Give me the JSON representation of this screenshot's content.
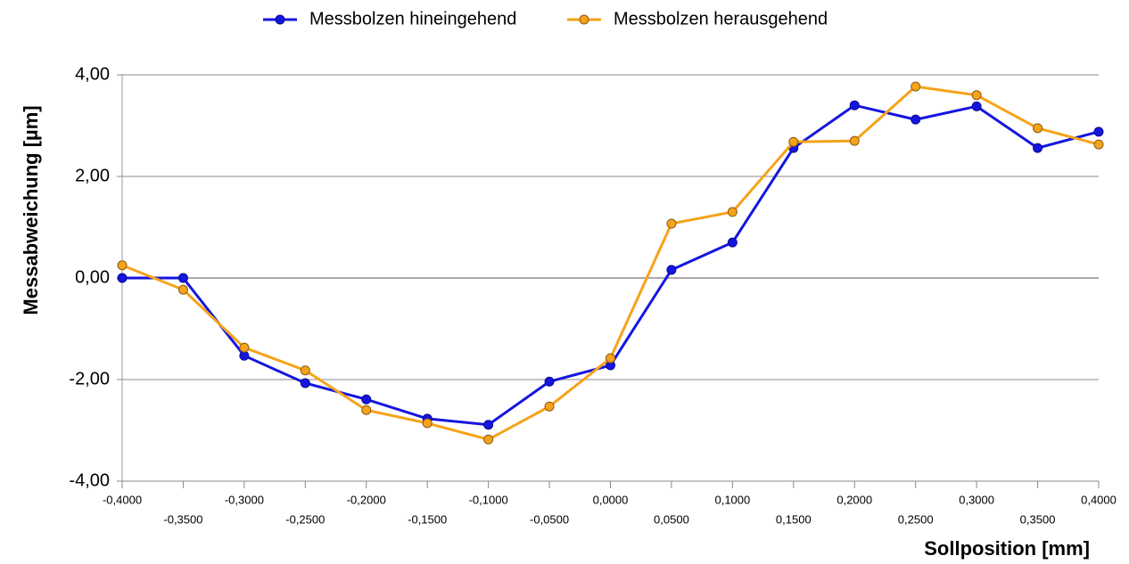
{
  "chart_data": {
    "type": "line",
    "x_label": "Sollposition [mm]",
    "y_label": "Messabweichung [µm]",
    "x": [
      -0.4,
      -0.35,
      -0.3,
      -0.25,
      -0.2,
      -0.15,
      -0.1,
      -0.05,
      0,
      0.05,
      0.1,
      0.15,
      0.2,
      0.25,
      0.3,
      0.35,
      0.4
    ],
    "series": [
      {
        "name": "Messbolzen hineingehend",
        "color": "#1515e0",
        "values": [
          0.0,
          0.0,
          -1.53,
          -2.07,
          -2.39,
          -2.77,
          -2.89,
          -2.04,
          -1.72,
          0.16,
          0.7,
          2.56,
          3.4,
          3.12,
          3.38,
          2.56,
          2.88
        ]
      },
      {
        "name": "Messbolzen herausgehend",
        "color": "#f5a31a",
        "values": [
          0.25,
          -0.23,
          -1.37,
          -1.82,
          -2.6,
          -2.86,
          -3.18,
          -2.53,
          -1.58,
          1.07,
          1.3,
          2.68,
          2.7,
          3.77,
          3.6,
          2.95,
          2.63
        ]
      }
    ],
    "xlim": [
      -0.4,
      0.4
    ],
    "xticks": [
      {
        "value": -0.4,
        "label": "-0,4000"
      },
      {
        "value": -0.35,
        "label": "-0,3500"
      },
      {
        "value": -0.3,
        "label": "-0,3000"
      },
      {
        "value": -0.25,
        "label": "-0,2500"
      },
      {
        "value": -0.2,
        "label": "-0,2000"
      },
      {
        "value": -0.15,
        "label": "-0,1500"
      },
      {
        "value": -0.1,
        "label": "-0,1000"
      },
      {
        "value": -0.05,
        "label": "-0,0500"
      },
      {
        "value": 0,
        "label": "0,0000"
      },
      {
        "value": 0.05,
        "label": "0,0500"
      },
      {
        "value": 0.1,
        "label": "0,1000"
      },
      {
        "value": 0.15,
        "label": "0,1500"
      },
      {
        "value": 0.2,
        "label": "0,2000"
      },
      {
        "value": 0.25,
        "label": "0,2500"
      },
      {
        "value": 0.3,
        "label": "0,3000"
      },
      {
        "value": 0.35,
        "label": "0,3500"
      },
      {
        "value": 0.4,
        "label": "0,4000"
      }
    ],
    "ylim": [
      -4,
      4
    ],
    "yticks": [
      {
        "value": -4,
        "label": "-4,00"
      },
      {
        "value": -2,
        "label": "-2,00"
      },
      {
        "value": 0,
        "label": "0,00"
      },
      {
        "value": 2,
        "label": "2,00"
      },
      {
        "value": 4,
        "label": "4,00"
      }
    ],
    "grid": true,
    "legend": "top"
  }
}
